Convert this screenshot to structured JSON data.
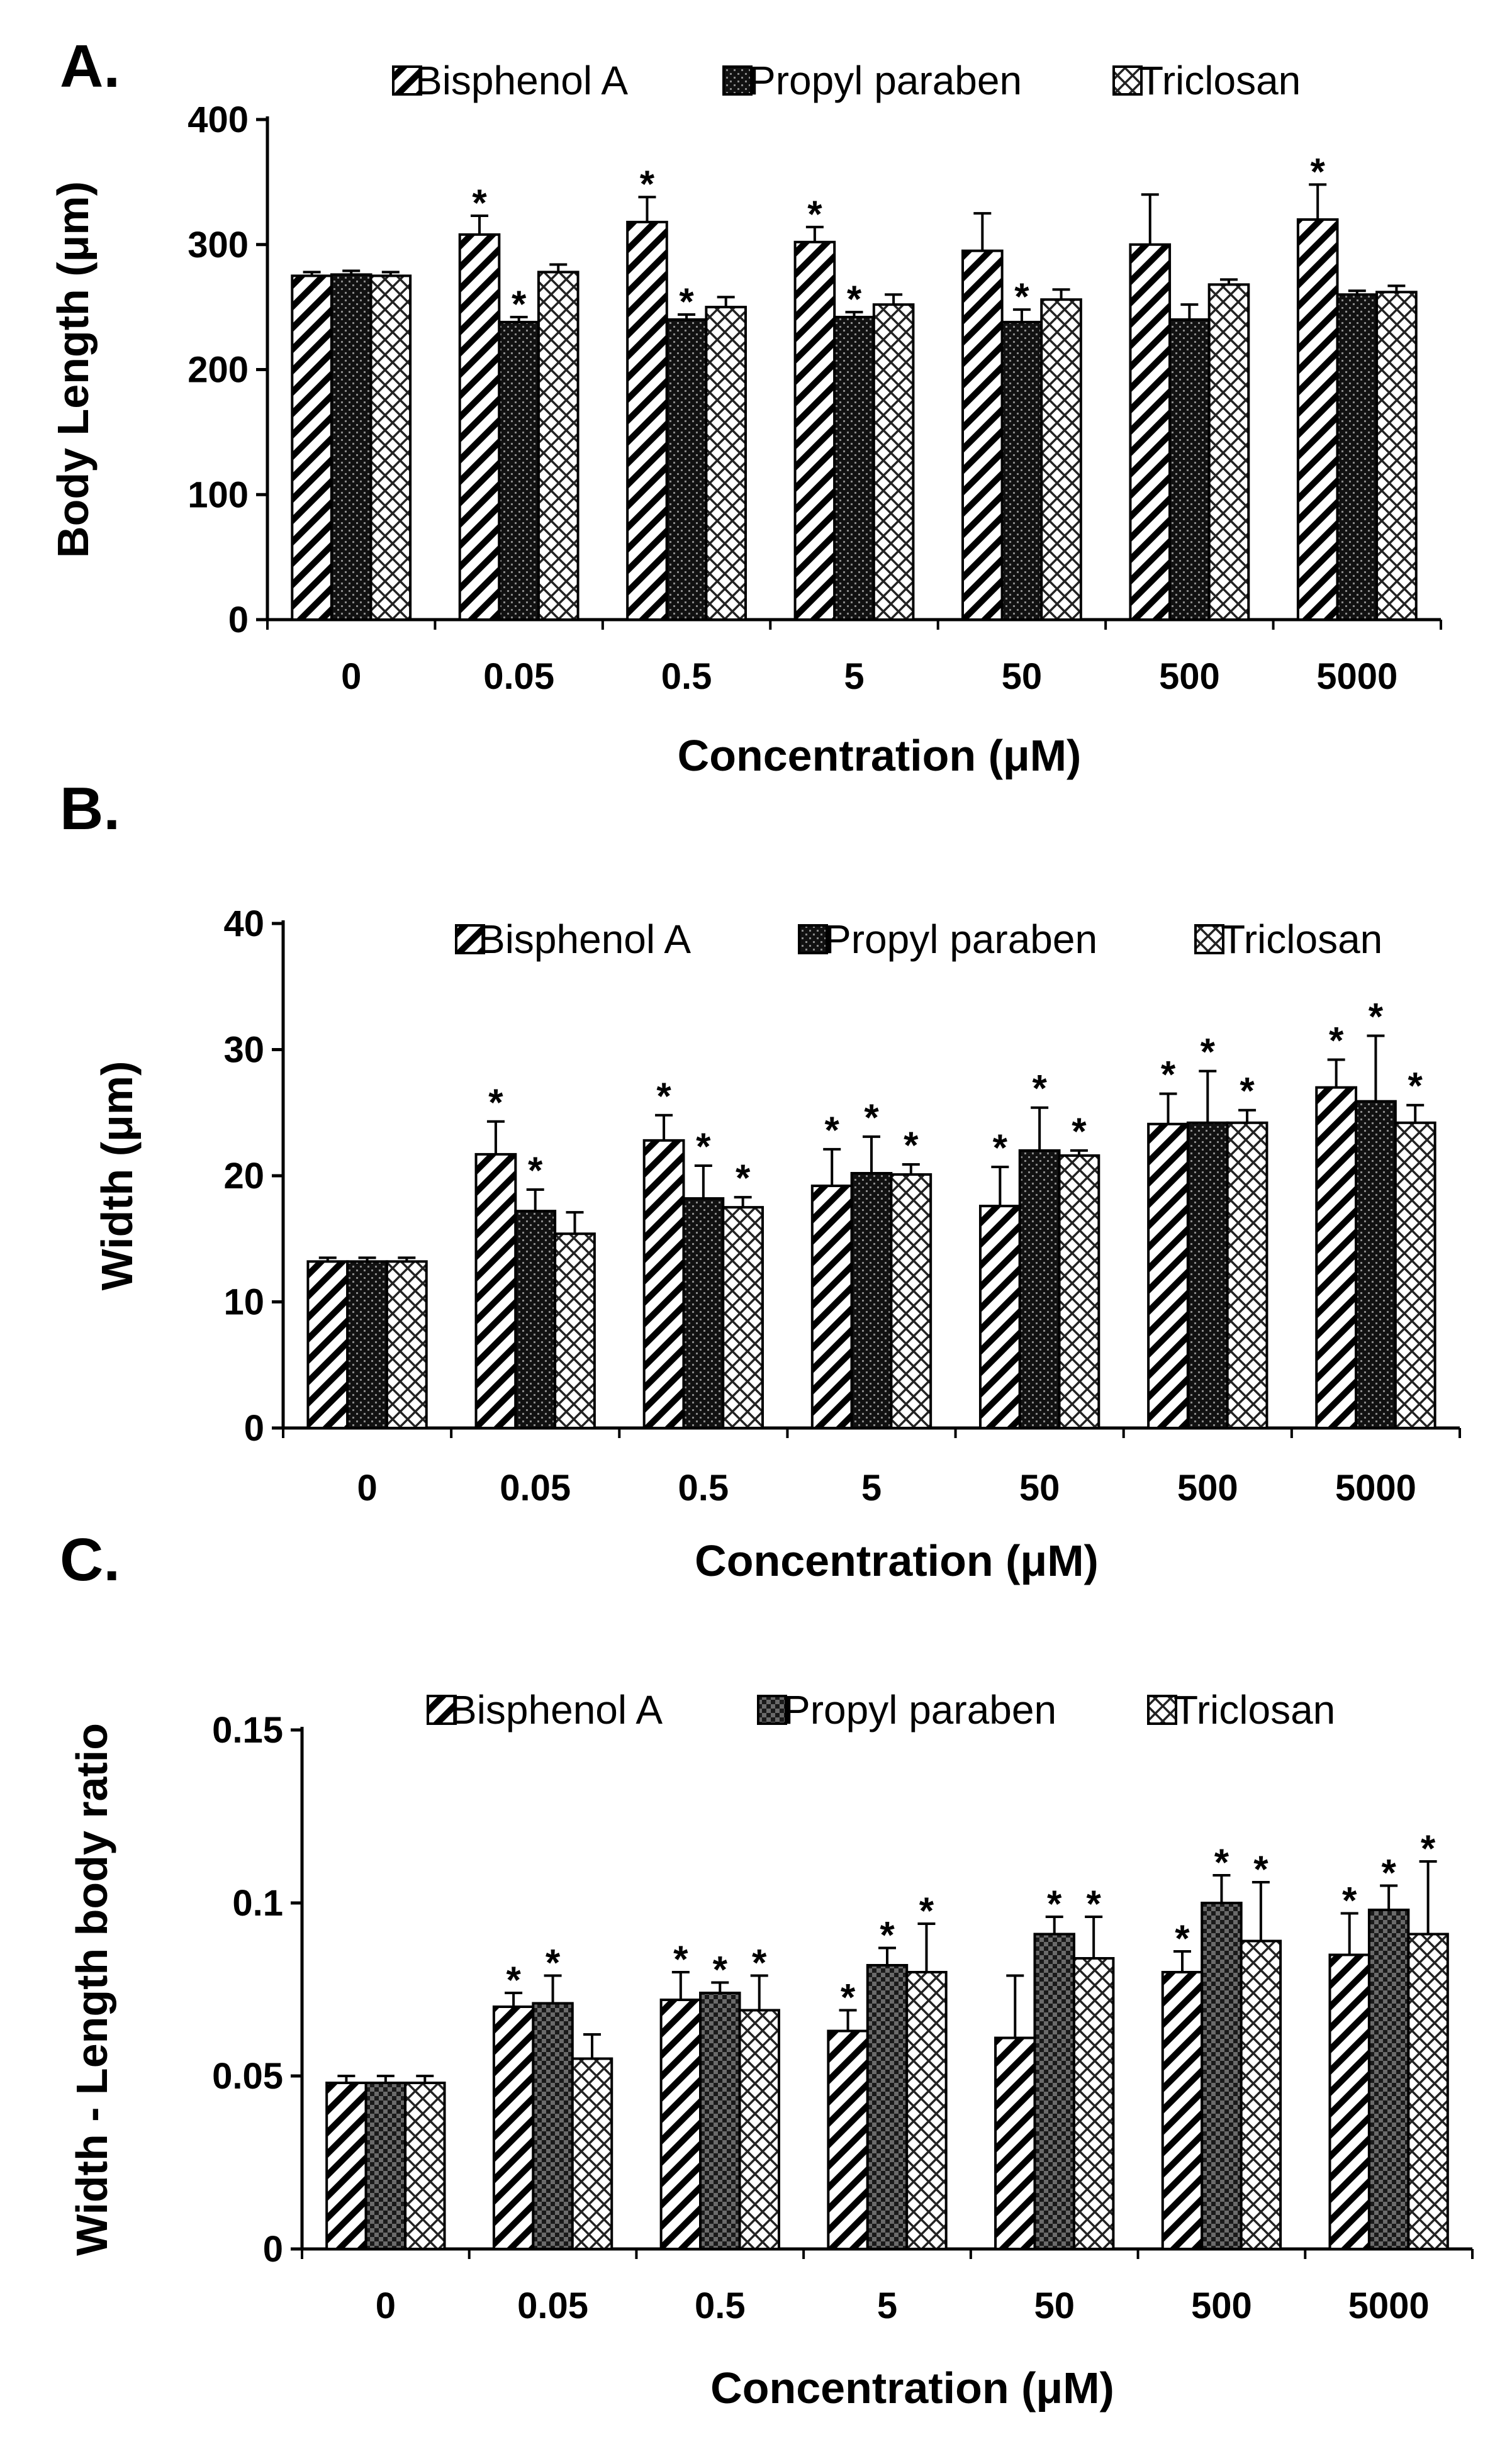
{
  "chart_data": [
    {
      "type": "bar",
      "panel": "A.",
      "categories": [
        "0",
        "0.05",
        "0.5",
        "5",
        "50",
        "500",
        "5000"
      ],
      "xlabel": "Concentration (μM)",
      "ylabel": "Body Length (μm)",
      "ylim": [
        0,
        400
      ],
      "yticks": [
        "0",
        "100",
        "200",
        "300",
        "400"
      ],
      "yticks_values": [
        0,
        100,
        200,
        300,
        400
      ],
      "legend_position": "top",
      "series": [
        {
          "name": "Bisphenol A",
          "pattern": "diag",
          "values": [
            275,
            308,
            318,
            302,
            295,
            300,
            320
          ],
          "errors": [
            3,
            15,
            20,
            12,
            30,
            40,
            28
          ],
          "significant": [
            false,
            true,
            true,
            true,
            false,
            false,
            true
          ]
        },
        {
          "name": "Propyl paraben",
          "pattern": "dots",
          "values": [
            276,
            238,
            240,
            242,
            238,
            240,
            260
          ],
          "errors": [
            3,
            4,
            4,
            4,
            10,
            12,
            3
          ],
          "significant": [
            false,
            true,
            true,
            true,
            true,
            false,
            false
          ]
        },
        {
          "name": "Triclosan",
          "pattern": "cross",
          "values": [
            275,
            278,
            250,
            252,
            256,
            268,
            262
          ],
          "errors": [
            3,
            6,
            8,
            8,
            8,
            4,
            5
          ],
          "significant": [
            false,
            false,
            false,
            false,
            false,
            false,
            false
          ]
        }
      ]
    },
    {
      "type": "bar",
      "panel": "B.",
      "categories": [
        "0",
        "0.05",
        "0.5",
        "5",
        "50",
        "500",
        "5000"
      ],
      "xlabel": "Concentration (μM)",
      "ylabel": "Width (μm)",
      "ylim": [
        0,
        40
      ],
      "yticks": [
        "0",
        "10",
        "20",
        "30",
        "40"
      ],
      "yticks_values": [
        0,
        10,
        20,
        30,
        40
      ],
      "legend_position": "top",
      "series": [
        {
          "name": "Bisphenol A",
          "pattern": "diag",
          "values": [
            13.2,
            21.7,
            22.8,
            19.2,
            17.6,
            24.1,
            27.0
          ],
          "errors": [
            0.3,
            2.6,
            2.0,
            2.9,
            3.1,
            2.4,
            2.2
          ],
          "significant": [
            false,
            true,
            true,
            true,
            true,
            true,
            true
          ]
        },
        {
          "name": "Propyl paraben",
          "pattern": "dots",
          "values": [
            13.2,
            17.2,
            18.2,
            20.2,
            22.0,
            24.2,
            25.9
          ],
          "errors": [
            0.3,
            1.7,
            2.6,
            2.9,
            3.4,
            4.1,
            5.2
          ],
          "significant": [
            false,
            true,
            true,
            true,
            true,
            true,
            true
          ]
        },
        {
          "name": "Triclosan",
          "pattern": "cross",
          "values": [
            13.2,
            15.4,
            17.5,
            20.1,
            21.6,
            24.2,
            24.2
          ],
          "errors": [
            0.3,
            1.7,
            0.8,
            0.8,
            0.4,
            1.0,
            1.4
          ],
          "significant": [
            false,
            false,
            true,
            true,
            true,
            true,
            true
          ]
        }
      ]
    },
    {
      "type": "bar",
      "panel": "C.",
      "categories": [
        "0",
        "0.05",
        "0.5",
        "5",
        "50",
        "500",
        "5000"
      ],
      "xlabel": "Concentration (μM)",
      "ylabel": "Width - Length body ratio",
      "ylim": [
        0,
        0.15
      ],
      "yticks": [
        "0",
        "0.05",
        "0.1",
        "0.15"
      ],
      "yticks_values": [
        0,
        0.05,
        0.1,
        0.15
      ],
      "legend_position": "top",
      "series": [
        {
          "name": "Bisphenol A",
          "pattern": "diag",
          "values": [
            0.048,
            0.07,
            0.072,
            0.063,
            0.061,
            0.08,
            0.085
          ],
          "errors": [
            0.002,
            0.004,
            0.008,
            0.006,
            0.018,
            0.006,
            0.012
          ],
          "significant": [
            false,
            true,
            true,
            true,
            false,
            true,
            true
          ]
        },
        {
          "name": "Propyl paraben",
          "pattern": "checker",
          "values": [
            0.048,
            0.071,
            0.074,
            0.082,
            0.091,
            0.1,
            0.098
          ],
          "errors": [
            0.002,
            0.008,
            0.003,
            0.005,
            0.005,
            0.008,
            0.007
          ],
          "significant": [
            false,
            true,
            true,
            true,
            true,
            true,
            true
          ]
        },
        {
          "name": "Triclosan",
          "pattern": "cross",
          "values": [
            0.048,
            0.055,
            0.069,
            0.08,
            0.084,
            0.089,
            0.091
          ],
          "errors": [
            0.002,
            0.007,
            0.01,
            0.014,
            0.012,
            0.017,
            0.021
          ],
          "significant": [
            false,
            false,
            true,
            true,
            true,
            true,
            true
          ]
        }
      ]
    }
  ]
}
